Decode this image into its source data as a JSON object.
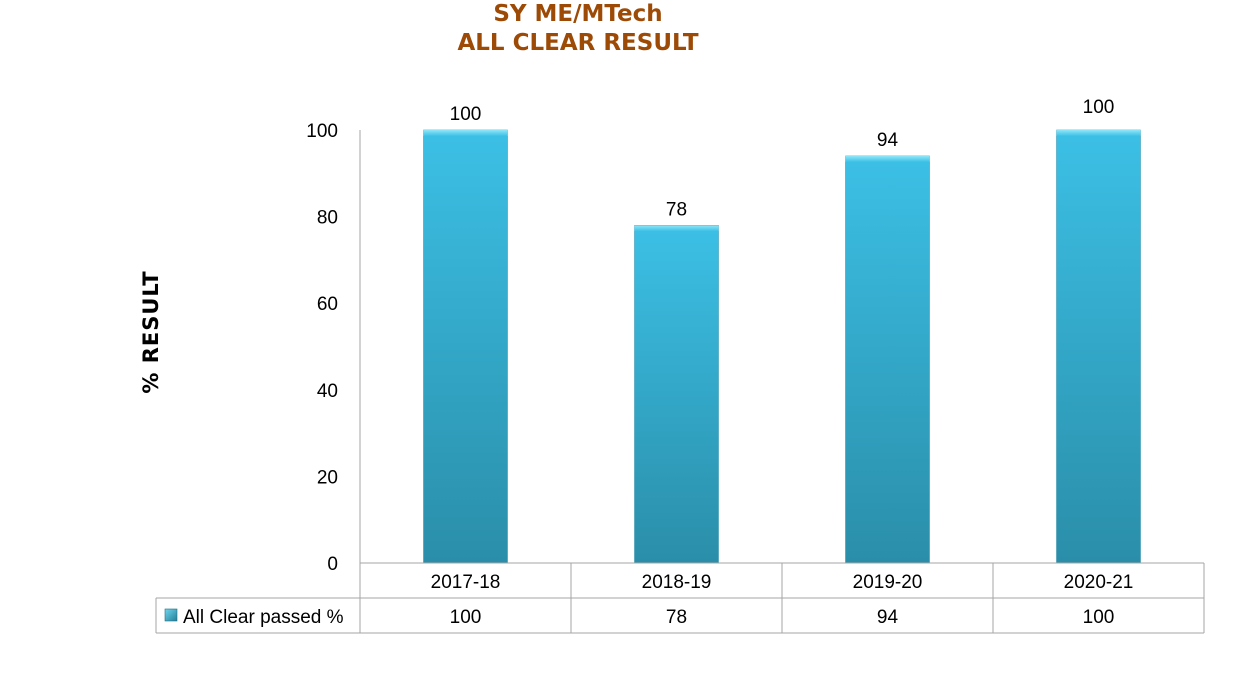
{
  "chart_data": {
    "type": "bar",
    "title_line1": "SY ME/MTech",
    "title_line2": "ALL CLEAR RESULT",
    "ylabel": "% RESULT",
    "xlabel": "",
    "categories": [
      "2017-18",
      "2018-19",
      "2019-20",
      "2020-21"
    ],
    "series": [
      {
        "name": "All Clear passed %",
        "values": [
          100,
          78,
          94,
          100
        ],
        "color": "#35b5d6"
      }
    ],
    "ylim": [
      0,
      100
    ],
    "yticks": [
      0,
      20,
      40,
      60,
      80,
      100
    ],
    "data_labels": true,
    "data_table": true,
    "legend": "data-table",
    "grid": false
  }
}
